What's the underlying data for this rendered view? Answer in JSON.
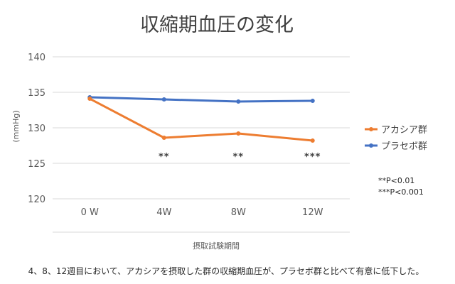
{
  "chart_data": {
    "type": "line",
    "title": "収縮期血圧の変化",
    "xlabel": "摂取試験期間",
    "ylabel": "(mmHg)",
    "categories": [
      "0 W",
      "4W",
      "8W",
      "12W"
    ],
    "ylim": [
      115,
      140
    ],
    "yticks": [
      140,
      135,
      130,
      125,
      120
    ],
    "grid": true,
    "legend_position": "right",
    "series": [
      {
        "name": "アカシア群",
        "color": "#ED7D31",
        "values": [
          134.1,
          128.6,
          129.2,
          128.2
        ]
      },
      {
        "name": "プラセボ群",
        "color": "#4472C4",
        "values": [
          134.3,
          134.0,
          133.7,
          133.8
        ]
      }
    ],
    "significance_marks": [
      {
        "category": "4W",
        "label": "**"
      },
      {
        "category": "8W",
        "label": "**"
      },
      {
        "category": "12W",
        "label": "***"
      }
    ],
    "notes": [
      "**P<0.01",
      "***P<0.001"
    ]
  },
  "caption": "4、8、12週目において、アカシアを摂取した群の収縮期血圧が、プラセボ群と比べて有意に低下した。"
}
